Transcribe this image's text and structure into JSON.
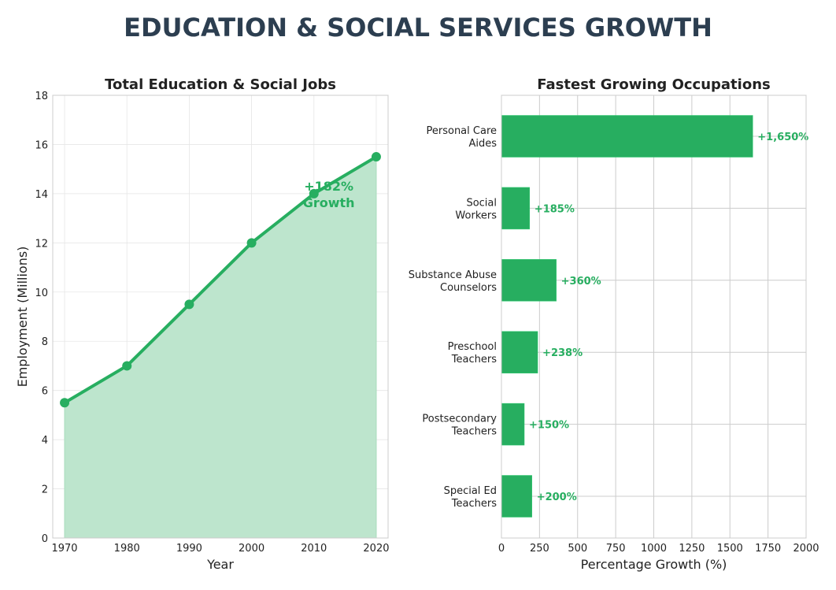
{
  "title": "EDUCATION & SOCIAL SERVICES GROWTH",
  "colors": {
    "title": "#2c3e50",
    "accent": "#27ae60",
    "fill": "#bde5cd",
    "grid": "#cccccc",
    "text": "#222222"
  },
  "chart_data": [
    {
      "type": "area",
      "title": "Total Education & Social Jobs",
      "xlabel": "Year",
      "ylabel": "Employment (Millions)",
      "x": [
        1970,
        1980,
        1990,
        2000,
        2010,
        2020
      ],
      "values": [
        5.5,
        7,
        9.5,
        12,
        14,
        15.5
      ],
      "xlim": [
        1968,
        2022
      ],
      "ylim": [
        0,
        18
      ],
      "xticks": [
        1970,
        1980,
        1990,
        2000,
        2010,
        2020
      ],
      "yticks": [
        0,
        2,
        4,
        6,
        8,
        10,
        12,
        14,
        16,
        18
      ],
      "grid": true,
      "annotation": {
        "lines": [
          "+182%",
          "Growth"
        ],
        "x": 2012,
        "y": 14
      }
    },
    {
      "type": "bar",
      "orientation": "horizontal",
      "title": "Fastest Growing Occupations",
      "xlabel": "Percentage Growth (%)",
      "categories": [
        [
          "Personal Care",
          "Aides"
        ],
        [
          "Social",
          "Workers"
        ],
        [
          "Substance Abuse",
          "Counselors"
        ],
        [
          "Preschool",
          "Teachers"
        ],
        [
          "Postsecondary",
          "Teachers"
        ],
        [
          "Special Ed",
          "Teachers"
        ]
      ],
      "values": [
        1650,
        185,
        360,
        238,
        150,
        200
      ],
      "labels": [
        "+1,650%",
        "+185%",
        "+360%",
        "+238%",
        "+150%",
        "+200%"
      ],
      "xlim": [
        0,
        2000
      ],
      "xticks": [
        0,
        250,
        500,
        750,
        1000,
        1250,
        1500,
        1750,
        2000
      ],
      "grid": true
    }
  ]
}
